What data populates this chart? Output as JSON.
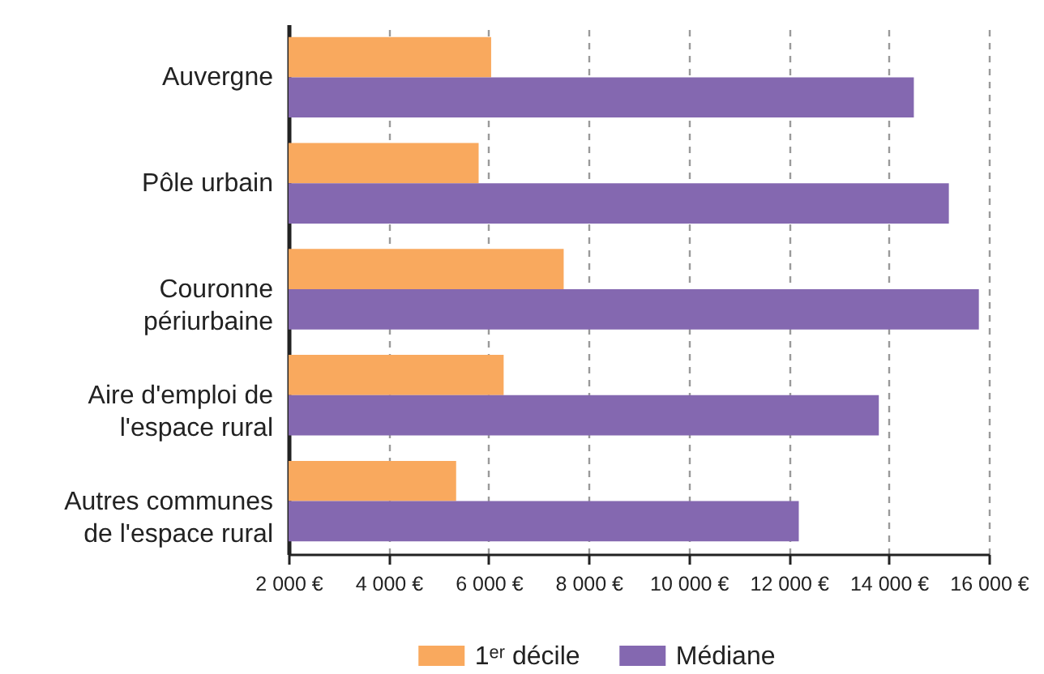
{
  "chart_data": {
    "type": "bar",
    "orientation": "horizontal",
    "categories": [
      "Auvergne",
      "Pôle urbain",
      "Couronne périurbaine",
      "Aire d'emploi de l'espace rural",
      "Autres communes de l'espace rural"
    ],
    "series": [
      {
        "name": "1ᵉʳ décile",
        "color": "#f9a95e",
        "values": [
          6050,
          5800,
          7500,
          6300,
          5350
        ]
      },
      {
        "name": "Médiane",
        "color": "#8468b0",
        "values": [
          14500,
          15200,
          15800,
          13800,
          12200
        ]
      }
    ],
    "xlim": [
      2000,
      16000
    ],
    "xticks": [
      {
        "value": 2000,
        "label": "2 000 €"
      },
      {
        "value": 4000,
        "label": "4 000 €"
      },
      {
        "value": 6000,
        "label": "6 000 €"
      },
      {
        "value": 8000,
        "label": "8 000 €"
      },
      {
        "value": 10000,
        "label": "10 000 €"
      },
      {
        "value": 12000,
        "label": "12 000 €"
      },
      {
        "value": 14000,
        "label": "14 000 €"
      },
      {
        "value": 16000,
        "label": "16 000 €"
      }
    ],
    "grid": "x",
    "legend": "bottom"
  }
}
